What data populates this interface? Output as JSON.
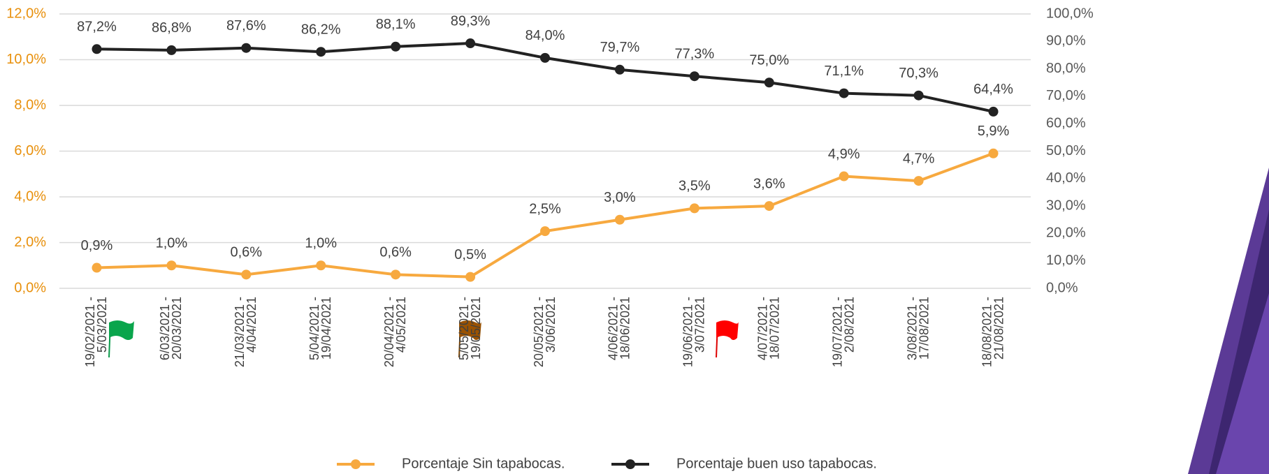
{
  "chart_data": {
    "type": "line",
    "categories": [
      [
        "19/02/2021 -",
        "5/03/2021"
      ],
      [
        "6/03/2021 -",
        "20/03/2021"
      ],
      [
        "21/03/2021 -",
        "4/04/2021"
      ],
      [
        "5/04/2021 -",
        "19/04/2021"
      ],
      [
        "20/04/2021 -",
        "4/05/2021"
      ],
      [
        "5/05/2021 -",
        "19/05/2021"
      ],
      [
        "20/05/2021 -",
        "3/06/2021"
      ],
      [
        "4/06/2021 -",
        "18/06/2021"
      ],
      [
        "19/06/2021 -",
        "3/07/2021"
      ],
      [
        "4/07/2021 -",
        "18/07/2021"
      ],
      [
        "19/07/2021 -",
        "2/08/2021"
      ],
      [
        "3/08/2021 -",
        "17/08/2021"
      ],
      [
        "18/08/2021 -",
        "21/08/2021"
      ]
    ],
    "series": [
      {
        "name": "Porcentaje Sin tapabocas.",
        "color": "#f7a93f",
        "values": [
          0.9,
          1.0,
          0.6,
          1.0,
          0.6,
          0.5,
          2.5,
          3.0,
          3.5,
          3.6,
          4.9,
          4.7,
          5.9
        ],
        "value_labels": [
          "0,9%",
          "1,0%",
          "0,6%",
          "1,0%",
          "0,6%",
          "0,5%",
          "2,5%",
          "3,0%",
          "3,5%",
          "3,6%",
          "4,9%",
          "4,7%",
          "5,9%"
        ]
      },
      {
        "name": "Porcentaje buen uso tapabocas.",
        "color": "#222222",
        "axis": "y2",
        "values": [
          87.2,
          86.8,
          87.6,
          86.2,
          88.1,
          89.3,
          84.0,
          79.7,
          77.3,
          75.0,
          71.1,
          70.3,
          64.4
        ],
        "value_labels": [
          "87,2%",
          "86,8%",
          "87,6%",
          "86,2%",
          "88,1%",
          "89,3%",
          "84,0%",
          "79,7%",
          "77,3%",
          "75,0%",
          "71,1%",
          "70,3%",
          "64,4%"
        ]
      }
    ],
    "ylim": [
      0,
      12
    ],
    "yticks": [
      {
        "value": 0,
        "label": "0,0%"
      },
      {
        "value": 2,
        "label": "2,0%"
      },
      {
        "value": 4,
        "label": "4,0%"
      },
      {
        "value": 6,
        "label": "6,0%"
      },
      {
        "value": 8,
        "label": "8,0%"
      },
      {
        "value": 10,
        "label": "10,0%"
      },
      {
        "value": 12,
        "label": "12,0%"
      }
    ],
    "y2lim": [
      0,
      100
    ],
    "y2ticks": [
      {
        "value": 0,
        "label": "0,0%"
      },
      {
        "value": 10,
        "label": "10,0%"
      },
      {
        "value": 20,
        "label": "20,0%"
      },
      {
        "value": 30,
        "label": "30,0%"
      },
      {
        "value": 40,
        "label": "40,0%"
      },
      {
        "value": 50,
        "label": "50,0%"
      },
      {
        "value": 60,
        "label": "60,0%"
      },
      {
        "value": 70,
        "label": "70,0%"
      },
      {
        "value": 80,
        "label": "80,0%"
      },
      {
        "value": 90,
        "label": "90,0%"
      },
      {
        "value": 100,
        "label": "100,0%"
      }
    ],
    "grid": true,
    "legend": "bottom"
  }
}
